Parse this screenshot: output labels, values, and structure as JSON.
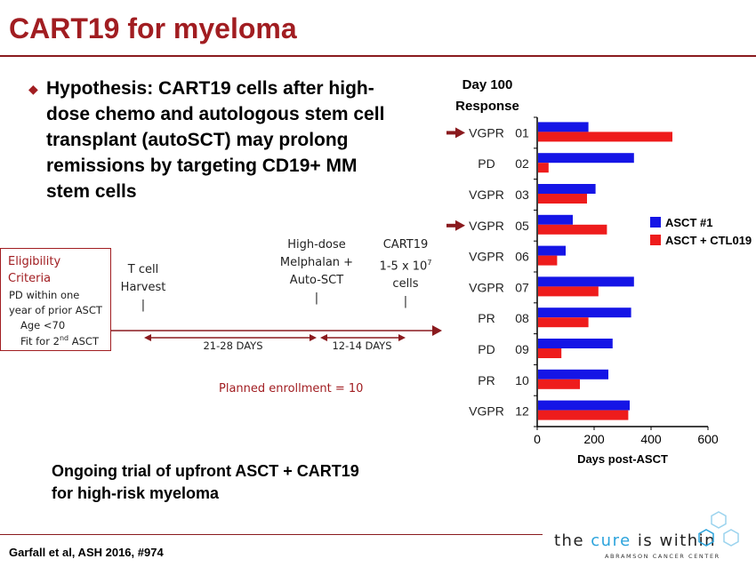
{
  "slide": {
    "title": "CART19 for myeloma",
    "bullet": "Hypothesis: CART19 cells after high-dose chemo and autologous stem cell transplant (autoSCT) may prolong remissions by targeting CD19+ MM stem cells",
    "eligibility": {
      "title": "Eligibility Criteria",
      "lines": [
        "PD within one",
        "year of prior ASCT",
        "Age <70",
        "Fit for 2nd ASCT"
      ]
    },
    "timeline": {
      "step1": [
        "T cell",
        "Harvest"
      ],
      "step2": [
        "High-dose",
        "Melphalan +",
        "Auto-SCT"
      ],
      "step3": [
        "CART19",
        "1-5 x 10^7",
        "cells"
      ],
      "interval1": "21-28 DAYS",
      "interval2": "12-14 DAYS"
    },
    "enrollment": "Planned enrollment = 10",
    "ongoing": "Ongoing trial of upfront ASCT + CART19 for high-risk myeloma",
    "citation": "Garfall et al, ASH 2016, #974",
    "logo": {
      "tagline_pre": "the ",
      "tagline_cure": "cure",
      "tagline_post": " is within",
      "subtitle": "ABRAMSON CANCER CENTER"
    },
    "colors": {
      "accent": "#a11d21",
      "asct": "#1515e6",
      "ctl": "#ee1c1c"
    }
  },
  "chart_data": {
    "type": "bar",
    "orientation": "horizontal",
    "header": [
      "Day 100",
      "Response"
    ],
    "categories": [
      "01",
      "02",
      "03",
      "05",
      "06",
      "07",
      "08",
      "09",
      "10",
      "12"
    ],
    "responses": [
      "VGPR",
      "PD",
      "VGPR",
      "VGPR",
      "VGPR",
      "VGPR",
      "PR",
      "PD",
      "PR",
      "VGPR"
    ],
    "highlighted": [
      "01",
      "05"
    ],
    "series": [
      {
        "name": "ASCT #1",
        "color": "#1515e6",
        "values": [
          180,
          340,
          205,
          125,
          100,
          340,
          330,
          265,
          250,
          325
        ]
      },
      {
        "name": "ASCT + CTL019",
        "color": "#ee1c1c",
        "values": [
          475,
          40,
          175,
          245,
          70,
          215,
          180,
          85,
          150,
          320
        ]
      }
    ],
    "xlabel": "Days post-ASCT",
    "xlim": [
      0,
      600
    ],
    "xticks": [
      0,
      200,
      400,
      600
    ],
    "legend": "right"
  }
}
